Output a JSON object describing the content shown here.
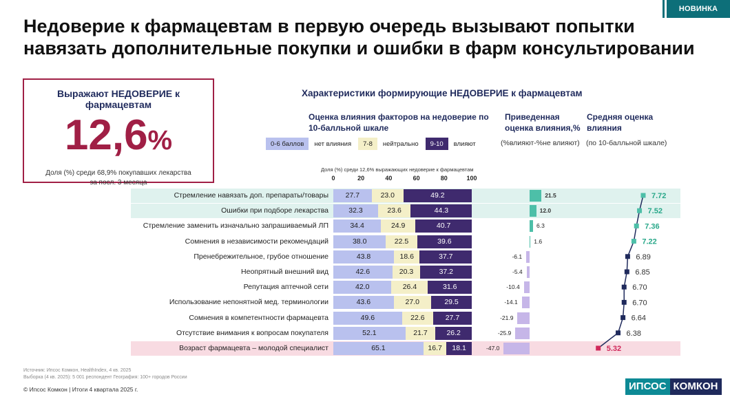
{
  "badge": "НОВИНКА",
  "title_line1": "Недоверие к фармацевтам в первую очередь вызывают попытки",
  "title_line2": "навязать дополнительные покупки и ошибки в фарм консультировании",
  "kpi": {
    "label": "Выражают НЕДОВЕРИЕ к фармацевтам",
    "value": "12,6",
    "unit": "%",
    "note": "Доля (%) среди 68,9% покупавших лекарства за посл. 3 месяца"
  },
  "chart_title": "Характеристики формирующие НЕДОВЕРИЕ к фармацевтам",
  "headers": {
    "scale": "Оценка влияния факторов на недоверие по 10-балльной шкале",
    "net": "Приведенная оценка влияния,%",
    "net_sub": "(%влияют-%не влияют)",
    "avg": "Средняя оценка влияния",
    "avg_sub": "(по 10-балльной шкале)"
  },
  "legend": [
    {
      "swatch": "0-6 баллов",
      "text": "нет влияния",
      "color": "#b9c1ee"
    },
    {
      "swatch": "7-8",
      "text": "нейтрально",
      "color": "#f4efc8"
    },
    {
      "swatch": "9-10",
      "text": "влияют",
      "color": "#3f2a6e"
    }
  ],
  "axis_caption": "Доля (%) среди 12,6% выражающих недоверие к фармацевтам",
  "colors": {
    "low": "#b9c1ee",
    "mid": "#f4efc8",
    "high": "#3f2a6e",
    "pos_bar": "#4dbfa8",
    "neg_bar": "#c6b6e8",
    "pos_text": "#2aa88a",
    "neg_text": "#333333",
    "worst_text": "#d0285a",
    "line": "#1f2a5c",
    "highlight_top": "#dff2ee",
    "highlight_bottom": "#f8dbe2",
    "kpi_red": "#a01f45"
  },
  "chart_data": {
    "type": "bar",
    "stacked": true,
    "title": "Характеристики формирующие НЕДОВЕРИЕ к фармацевтам",
    "xlim": [
      0,
      100
    ],
    "x_ticks": [
      "0",
      "20",
      "40",
      "60",
      "80",
      "100"
    ],
    "categories": [
      "Стремление навязать доп. препараты/товары",
      "Ошибки при подборе лекарства",
      "Стремление заменить изначально запрашиваемый ЛП",
      "Сомнения в независимости рекомендаций",
      "Пренебрежительное, грубое отношение",
      "Неопрятный внешний вид",
      "Репутация аптечной сети",
      "Использование непонятной мед. терминологии",
      "Сомнения в компетентности фармацевта",
      "Отсутствие внимания к вопросам покупателя",
      "Возраст фармацевта – молодой специалист"
    ],
    "series": [
      {
        "name": "0-6 баллов",
        "values": [
          27.7,
          32.3,
          34.4,
          38.0,
          43.8,
          42.6,
          42.0,
          43.6,
          49.6,
          52.1,
          65.1
        ]
      },
      {
        "name": "7-8",
        "values": [
          23.0,
          23.6,
          24.9,
          22.5,
          18.6,
          20.3,
          26.4,
          27.0,
          22.6,
          21.7,
          16.7
        ]
      },
      {
        "name": "9-10",
        "values": [
          49.2,
          44.3,
          40.7,
          39.6,
          37.7,
          37.2,
          31.6,
          29.5,
          27.7,
          26.2,
          18.1
        ]
      }
    ],
    "net_influence": {
      "name": "Приведенная оценка влияния,%",
      "values": [
        21.5,
        12.0,
        6.3,
        1.6,
        -6.1,
        -5.4,
        -10.4,
        -14.1,
        -21.9,
        -25.9,
        -47.0
      ],
      "labels": [
        "21.5",
        "12.0",
        "6.3",
        "1.6",
        "-6.1",
        "-5.4",
        "-10.4",
        "-14.1",
        "-21.9",
        "-25.9",
        "-47.0"
      ]
    },
    "average_score": {
      "name": "Средняя оценка влияния",
      "values": [
        7.72,
        7.52,
        7.36,
        7.22,
        6.89,
        6.85,
        6.7,
        6.7,
        6.64,
        6.38,
        5.32
      ],
      "labels": [
        "7.72",
        "7.52",
        "7.36",
        "7.22",
        "6.89",
        "6.85",
        "6.70",
        "6.70",
        "6.64",
        "6.38",
        "5.32"
      ]
    }
  },
  "footer": {
    "source": "Источник: Ипсос Комкон, HealthIndex, 4 кв. 2025",
    "sample": "Выборка (4 кв. 2025): 5 001 респондент География: 100+ городов России",
    "copyright": "© Ипсос Комкон | Итоги 4 квартала 2025 г.",
    "logo_a": "ИПСОС",
    "logo_b": "КОМКОН"
  }
}
